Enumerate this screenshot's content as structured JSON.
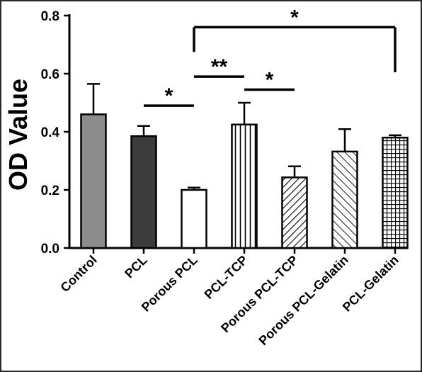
{
  "chart_data": {
    "type": "bar",
    "title": "",
    "xlabel": "",
    "ylabel": "OD Value",
    "ylim": [
      0,
      0.8
    ],
    "yticks": [
      "0.0",
      "0.2",
      "0.4",
      "0.6",
      "0.8"
    ],
    "grid": false,
    "categories": [
      "Control",
      "PCL",
      "Porous PCL",
      "PCL-TCP",
      "Porous PCL-TCP",
      "Porous PCL-Gelatin",
      "PCL-Gelatin"
    ],
    "values": [
      0.46,
      0.385,
      0.2,
      0.425,
      0.243,
      0.332,
      0.38
    ],
    "errors": [
      0.105,
      0.035,
      0.008,
      0.075,
      0.038,
      0.077,
      0.008
    ],
    "fills": [
      "#8c8c8c",
      "#3c3c3c",
      "#ffffff",
      "vertical-lines",
      "diagonal-lines",
      "diagonal-lines-sparse",
      "grid"
    ],
    "significance": [
      {
        "from": "PCL",
        "to": "Porous PCL",
        "label": "*",
        "y": 0.49,
        "drop_left": false,
        "drop_right": false
      },
      {
        "from": "Porous PCL",
        "to": "PCL-TCP",
        "label": "**",
        "y": 0.59,
        "drop_left": false,
        "drop_right": false
      },
      {
        "from": "PCL-TCP",
        "to": "Porous PCL-TCP",
        "label": "*",
        "y": 0.545,
        "drop_left": false,
        "drop_right": false
      },
      {
        "from": "Porous PCL",
        "to": "PCL-Gelatin",
        "label": "*",
        "y": 0.76,
        "drop_left": true,
        "drop_right": true,
        "drop_to": 0.675,
        "drop_to_right": 0.605
      }
    ]
  }
}
